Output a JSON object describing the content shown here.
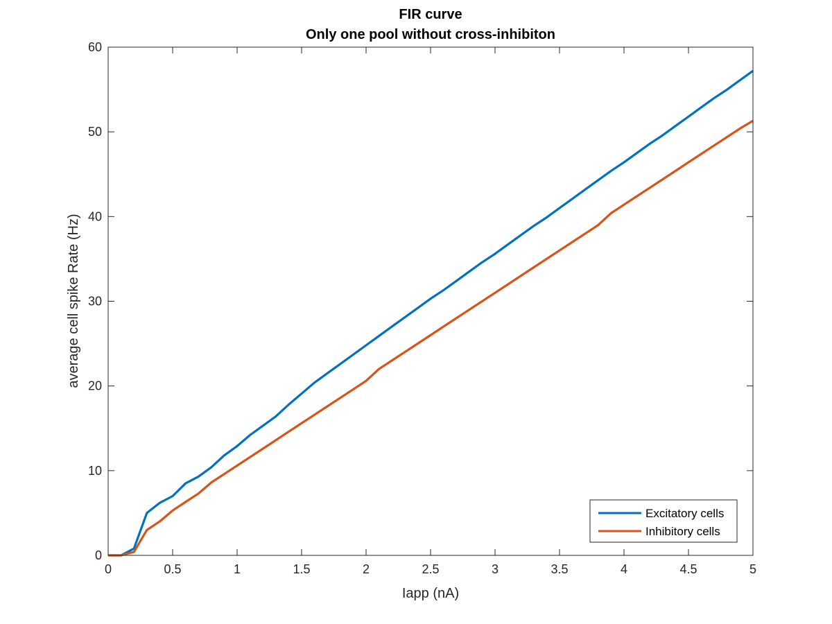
{
  "chart_data": {
    "type": "line",
    "title": "FIR curve",
    "subtitle": "Only one pool without cross-inhibiton",
    "xlabel": "Iapp (nA)",
    "ylabel": "average cell spike Rate (Hz)",
    "xlim": [
      0,
      5
    ],
    "ylim": [
      0,
      60
    ],
    "xticks": [
      0,
      0.5,
      1,
      1.5,
      2,
      2.5,
      3,
      3.5,
      4,
      4.5,
      5
    ],
    "xtick_labels": [
      "0",
      "0.5",
      "1",
      "1.5",
      "2",
      "2.5",
      "3",
      "3.5",
      "4",
      "4.5",
      "5"
    ],
    "yticks": [
      0,
      10,
      20,
      30,
      40,
      50,
      60
    ],
    "ytick_labels": [
      "0",
      "10",
      "20",
      "30",
      "40",
      "50",
      "60"
    ],
    "grid": false,
    "legend_position": "bottom-right",
    "x": [
      0,
      0.1,
      0.2,
      0.3,
      0.4,
      0.5,
      0.6,
      0.7,
      0.8,
      0.9,
      1.0,
      1.1,
      1.2,
      1.3,
      1.4,
      1.5,
      1.6,
      1.7,
      1.8,
      1.9,
      2.0,
      2.1,
      2.2,
      2.3,
      2.4,
      2.5,
      2.6,
      2.7,
      2.8,
      2.9,
      3.0,
      3.1,
      3.2,
      3.3,
      3.4,
      3.5,
      3.6,
      3.7,
      3.8,
      3.9,
      4.0,
      4.1,
      4.2,
      4.3,
      4.4,
      4.5,
      4.6,
      4.7,
      4.8,
      4.9,
      5.0
    ],
    "series": [
      {
        "name": "Excitatory cells",
        "color": "#0072BD",
        "values": [
          0,
          0,
          0.8,
          5.0,
          6.2,
          7.0,
          8.5,
          9.3,
          10.4,
          11.8,
          12.9,
          14.2,
          15.3,
          16.4,
          17.8,
          19.1,
          20.4,
          21.5,
          22.6,
          23.7,
          24.8,
          25.9,
          27.0,
          28.1,
          29.2,
          30.3,
          31.3,
          32.4,
          33.5,
          34.6,
          35.6,
          36.7,
          37.8,
          38.9,
          39.9,
          41.0,
          42.1,
          43.2,
          44.3,
          45.4,
          46.4,
          47.5,
          48.6,
          49.6,
          50.7,
          51.8,
          52.9,
          54.0,
          55.0,
          56.1,
          57.2
        ]
      },
      {
        "name": "Inhibitory cells",
        "color": "#D95319",
        "values": [
          0,
          0,
          0.4,
          3.0,
          4.0,
          5.3,
          6.3,
          7.3,
          8.6,
          9.6,
          10.6,
          11.6,
          12.6,
          13.6,
          14.6,
          15.6,
          16.6,
          17.6,
          18.6,
          19.6,
          20.6,
          22.0,
          23.0,
          24.0,
          25.0,
          26.0,
          27.0,
          28.0,
          29.0,
          30.0,
          31.0,
          32.0,
          33.0,
          34.0,
          35.0,
          36.0,
          37.0,
          38.0,
          39.0,
          40.4,
          41.4,
          42.4,
          43.4,
          44.4,
          45.4,
          46.4,
          47.4,
          48.4,
          49.4,
          50.4,
          51.3
        ]
      }
    ]
  }
}
